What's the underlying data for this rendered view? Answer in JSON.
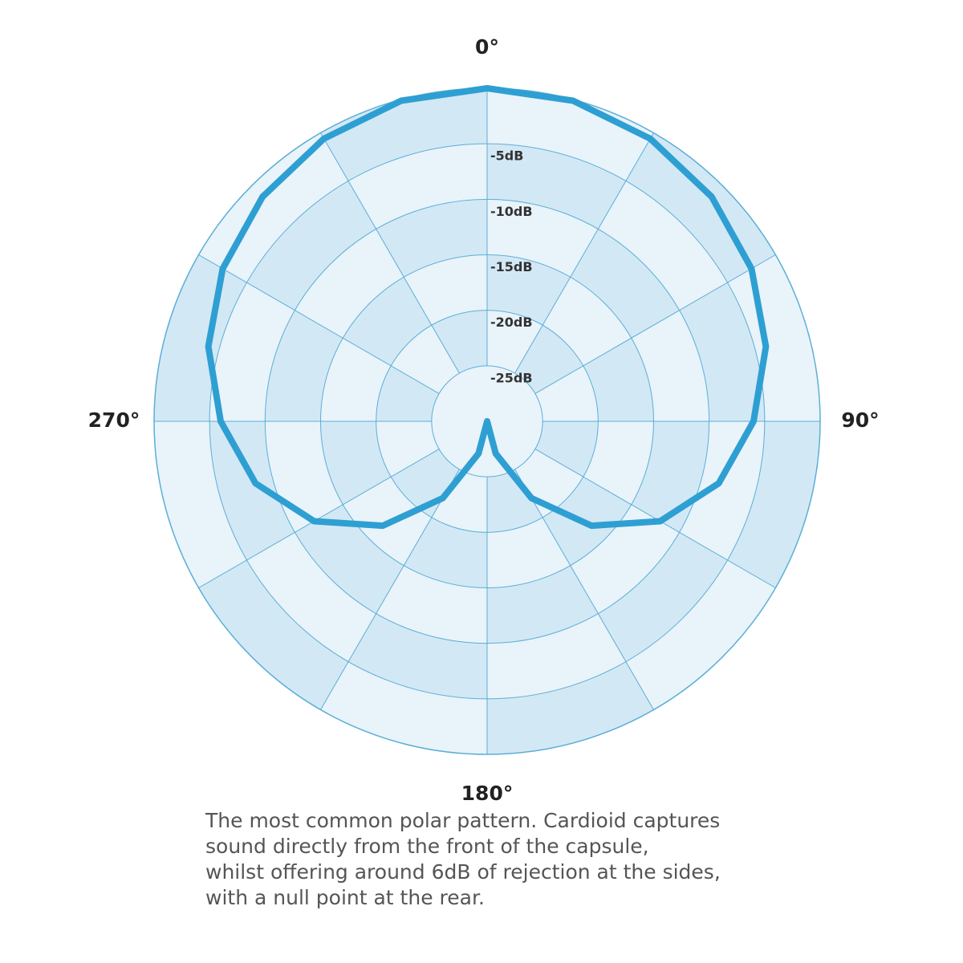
{
  "chart_data": {
    "type": "polar",
    "theta": [
      0,
      15,
      30,
      45,
      60,
      75,
      90,
      105,
      120,
      135,
      150,
      165,
      180,
      195,
      210,
      225,
      240,
      255,
      270,
      285,
      300,
      315,
      330,
      345
    ],
    "values": [
      0,
      -0.1,
      -0.6,
      -1.4,
      -2.5,
      -4.0,
      -6.0,
      -8.4,
      -12,
      -16.7,
      -22,
      -27,
      -30,
      -27,
      -22,
      -16.7,
      -12,
      -8.4,
      -6.0,
      -4.0,
      -2.5,
      -1.4,
      -0.6,
      -0.1
    ],
    "color": "#2e9fd2",
    "rlim": [
      -30,
      0
    ],
    "rticks": [
      {
        "value": -5,
        "label": "-5dB"
      },
      {
        "value": -10,
        "label": "-10dB"
      },
      {
        "value": -15,
        "label": "-15dB"
      },
      {
        "value": -20,
        "label": "-20dB"
      },
      {
        "value": -25,
        "label": "-25dB"
      }
    ],
    "thetaticks": [
      {
        "value": 0,
        "label": "0°"
      },
      {
        "value": 90,
        "label": "90°"
      },
      {
        "value": 180,
        "label": "180°"
      },
      {
        "value": 270,
        "label": "270°"
      }
    ],
    "caption": [
      "The most common polar pattern. Cardioid captures",
      "sound directly from the front of the capsule,",
      "whilst offering around 6dB of rejection at the sides,",
      "with a null point at the rear."
    ]
  }
}
